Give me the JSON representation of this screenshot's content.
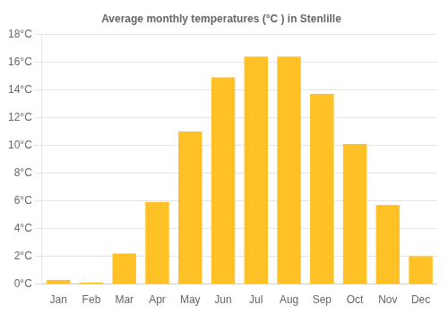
{
  "chart_data": {
    "type": "bar",
    "title": "Average monthly temperatures (°C ) in Stenlille",
    "categories": [
      "Jan",
      "Feb",
      "Mar",
      "Apr",
      "May",
      "Jun",
      "Jul",
      "Aug",
      "Sep",
      "Oct",
      "Nov",
      "Dec"
    ],
    "values": [
      0.3,
      0.1,
      2.2,
      5.9,
      11.0,
      14.9,
      16.4,
      16.4,
      13.7,
      10.1,
      5.7,
      2.0
    ],
    "color": "#FFC125",
    "ylim": [
      0,
      18
    ],
    "yticks": [
      {
        "value": 0,
        "label": "0°C"
      },
      {
        "value": 2,
        "label": "2°C"
      },
      {
        "value": 4,
        "label": "4°C"
      },
      {
        "value": 6,
        "label": "6°C"
      },
      {
        "value": 8,
        "label": "8°C"
      },
      {
        "value": 10,
        "label": "10°C"
      },
      {
        "value": 12,
        "label": "12°C"
      },
      {
        "value": 14,
        "label": "14°C"
      },
      {
        "value": 16,
        "label": "16°C"
      },
      {
        "value": 18,
        "label": "18°C"
      }
    ],
    "grid": true
  }
}
